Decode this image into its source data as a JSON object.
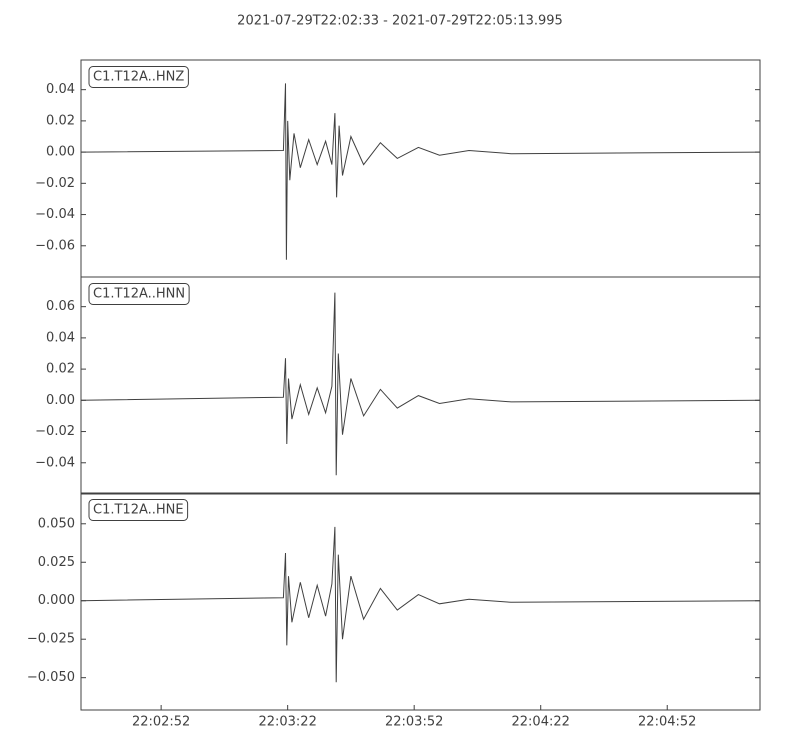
{
  "title": "2021-07-29T22:02:33  -  2021-07-29T22:05:13.995",
  "chart_data": [
    {
      "type": "line",
      "label": "C1.T12A..HNZ",
      "color": "#404040",
      "xlim": [
        "22:02:33",
        "22:05:13.995"
      ],
      "ylim": [
        -0.08,
        0.059
      ],
      "yticks": [
        0.04,
        0.02,
        {
          "value": 0,
          "label": "0.00"
        },
        {
          "value": -0.02,
          "label": "−0.02"
        },
        {
          "value": -0.04,
          "label": "−0.04"
        },
        {
          "value": -0.06,
          "label": "−0.06"
        }
      ],
      "x": [
        "22:02:33.0",
        "22:03:21.0",
        "22:03:21.5",
        "22:03:21.7",
        "22:03:22.0",
        "22:03:22.5",
        "22:03:23.5",
        "22:03:25.0",
        "22:03:27.0",
        "22:03:29.0",
        "22:03:31.0",
        "22:03:32.5",
        "22:03:33.2",
        "22:03:33.6",
        "22:03:34.2",
        "22:03:35.0",
        "22:03:37.0",
        "22:03:40.0",
        "22:03:44.0",
        "22:03:48.0",
        "22:03:53.0",
        "22:03:58.0",
        "22:04:05.0",
        "22:04:15.0",
        "22:05:13.9"
      ],
      "values": [
        0,
        0.001,
        0.044,
        -0.069,
        0.02,
        -0.018,
        0.012,
        -0.01,
        0.008,
        -0.008,
        0.007,
        -0.008,
        0.025,
        -0.029,
        0.017,
        -0.015,
        0.01,
        -0.008,
        0.006,
        -0.004,
        0.003,
        -0.002,
        0.001,
        -0.001,
        0
      ]
    },
    {
      "type": "line",
      "label": "C1.T12A..HNN",
      "color": "#404040",
      "xlim": [
        "22:02:33",
        "22:05:13.995"
      ],
      "ylim": [
        -0.06,
        0.079
      ],
      "yticks": [
        0.06,
        0.04,
        0.02,
        {
          "value": 0,
          "label": "0.00"
        },
        {
          "value": -0.02,
          "label": "−0.02"
        },
        {
          "value": -0.04,
          "label": "−0.04"
        }
      ],
      "x": [
        "22:02:33.0",
        "22:03:21.0",
        "22:03:21.5",
        "22:03:21.8",
        "22:03:22.2",
        "22:03:23.0",
        "22:03:25.0",
        "22:03:27.0",
        "22:03:29.0",
        "22:03:31.0",
        "22:03:32.5",
        "22:03:33.2",
        "22:03:33.5",
        "22:03:34.0",
        "22:03:35.0",
        "22:03:37.0",
        "22:03:40.0",
        "22:03:44.0",
        "22:03:48.0",
        "22:03:53.0",
        "22:03:58.0",
        "22:04:05.0",
        "22:04:15.0",
        "22:05:13.9"
      ],
      "values": [
        0,
        0.002,
        0.027,
        -0.028,
        0.014,
        -0.012,
        0.01,
        -0.009,
        0.008,
        -0.008,
        0.009,
        0.069,
        -0.048,
        0.03,
        -0.022,
        0.014,
        -0.01,
        0.007,
        -0.005,
        0.003,
        -0.002,
        0.001,
        -0.001,
        0
      ]
    },
    {
      "type": "line",
      "label": "C1.T12A..HNE",
      "color": "#404040",
      "xlim": [
        "22:02:33",
        "22:05:13.995"
      ],
      "ylim": [
        -0.071,
        0.07
      ],
      "yticks": [
        {
          "value": 0.05,
          "label": "0.050"
        },
        {
          "value": 0.025,
          "label": "0.025"
        },
        {
          "value": 0,
          "label": "0.000"
        },
        {
          "value": -0.025,
          "label": "−0.025"
        },
        {
          "value": -0.05,
          "label": "−0.050"
        }
      ],
      "xticks": [
        "22:02:52",
        "22:03:22",
        "22:03:52",
        "22:04:22",
        "22:04:52"
      ],
      "x": [
        "22:02:33.0",
        "22:03:21.0",
        "22:03:21.5",
        "22:03:21.8",
        "22:03:22.2",
        "22:03:23.0",
        "22:03:25.0",
        "22:03:27.0",
        "22:03:29.0",
        "22:03:31.0",
        "22:03:32.5",
        "22:03:33.2",
        "22:03:33.5",
        "22:03:34.0",
        "22:03:35.0",
        "22:03:37.0",
        "22:03:40.0",
        "22:03:44.0",
        "22:03:48.0",
        "22:03:53.0",
        "22:03:58.0",
        "22:04:05.0",
        "22:04:15.0",
        "22:05:13.9"
      ],
      "values": [
        0,
        0.002,
        0.031,
        -0.029,
        0.016,
        -0.014,
        0.012,
        -0.011,
        0.01,
        -0.01,
        0.011,
        0.048,
        -0.053,
        0.03,
        -0.025,
        0.016,
        -0.012,
        0.008,
        -0.006,
        0.004,
        -0.002,
        0.001,
        -0.001,
        0
      ]
    }
  ]
}
